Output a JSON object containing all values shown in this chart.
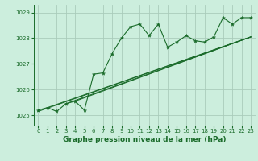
{
  "title": "Graphe pression niveau de la mer (hPa)",
  "bg_color": "#cceedd",
  "grid_color": "#aaccbb",
  "line_color": "#1a6b2a",
  "xlim": [
    -0.5,
    23.5
  ],
  "ylim": [
    1024.6,
    1029.3
  ],
  "yticks": [
    1025,
    1026,
    1027,
    1028,
    1029
  ],
  "xticks": [
    0,
    1,
    2,
    3,
    4,
    5,
    6,
    7,
    8,
    9,
    10,
    11,
    12,
    13,
    14,
    15,
    16,
    17,
    18,
    19,
    20,
    21,
    22,
    23
  ],
  "main_series": [
    1025.2,
    1025.3,
    1025.15,
    1025.45,
    1025.55,
    1025.2,
    1026.6,
    1026.65,
    1027.4,
    1028.0,
    1028.45,
    1028.55,
    1028.1,
    1028.55,
    1027.65,
    1027.85,
    1028.1,
    1027.9,
    1027.85,
    1028.05,
    1028.8,
    1028.55,
    1028.8,
    1028.8
  ],
  "trend1_x": [
    0,
    23
  ],
  "trend1_y": [
    1025.15,
    1028.05
  ],
  "trend2_x": [
    1,
    23
  ],
  "trend2_y": [
    1025.3,
    1028.05
  ],
  "trend3_x": [
    3,
    23
  ],
  "trend3_y": [
    1025.45,
    1028.05
  ],
  "trend4_x": [
    4,
    23
  ],
  "trend4_y": [
    1025.55,
    1028.05
  ]
}
